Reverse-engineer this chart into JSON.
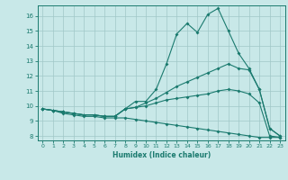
{
  "xlabel": "Humidex (Indice chaleur)",
  "x": [
    0,
    1,
    2,
    3,
    4,
    5,
    6,
    7,
    8,
    9,
    10,
    11,
    12,
    13,
    14,
    15,
    16,
    17,
    18,
    19,
    20,
    21,
    22,
    23
  ],
  "line1": [
    9.8,
    9.7,
    9.6,
    9.5,
    9.4,
    9.4,
    9.3,
    9.3,
    9.8,
    10.3,
    10.3,
    11.1,
    12.8,
    14.8,
    15.5,
    14.9,
    16.1,
    16.5,
    15.0,
    13.5,
    12.5,
    11.1,
    8.5,
    8.0
  ],
  "line2": [
    9.8,
    9.7,
    9.6,
    9.5,
    9.4,
    9.4,
    9.3,
    9.3,
    9.8,
    9.9,
    10.2,
    10.5,
    10.9,
    11.3,
    11.6,
    11.9,
    12.2,
    12.5,
    12.8,
    12.5,
    12.4,
    11.1,
    8.5,
    8.0
  ],
  "line3": [
    9.8,
    9.7,
    9.6,
    9.5,
    9.4,
    9.4,
    9.3,
    9.3,
    9.8,
    9.9,
    10.0,
    10.2,
    10.4,
    10.5,
    10.6,
    10.7,
    10.8,
    11.0,
    11.1,
    11.0,
    10.8,
    10.2,
    8.0,
    7.9
  ],
  "line4": [
    9.8,
    9.7,
    9.5,
    9.4,
    9.3,
    9.3,
    9.2,
    9.2,
    9.2,
    9.1,
    9.0,
    8.9,
    8.8,
    8.7,
    8.6,
    8.5,
    8.4,
    8.3,
    8.2,
    8.1,
    8.0,
    7.9,
    7.9,
    7.9
  ],
  "line_color": "#1a7a6e",
  "bg_color": "#c8e8e8",
  "grid_color": "#a0c8c8",
  "ylim": [
    7.7,
    16.7
  ],
  "xlim": [
    -0.5,
    23.5
  ],
  "yticks": [
    8,
    9,
    10,
    11,
    12,
    13,
    14,
    15,
    16
  ],
  "xticks": [
    0,
    1,
    2,
    3,
    4,
    5,
    6,
    7,
    8,
    9,
    10,
    11,
    12,
    13,
    14,
    15,
    16,
    17,
    18,
    19,
    20,
    21,
    22,
    23
  ]
}
